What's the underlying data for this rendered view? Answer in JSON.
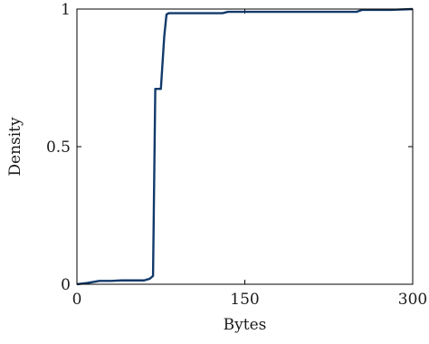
{
  "chart_data": {
    "type": "line",
    "title": "",
    "xlabel": "Bytes",
    "ylabel": "Density",
    "xlim": [
      0,
      300
    ],
    "ylim": [
      0,
      1
    ],
    "xticks": [
      0,
      150,
      300
    ],
    "xtick_labels": [
      "0",
      "150",
      "300"
    ],
    "yticks": [
      0,
      0.5,
      1
    ],
    "ytick_labels": [
      "0",
      "0.5",
      "1"
    ],
    "grid": false,
    "legend": "none",
    "series": [
      {
        "color": "#123a6b",
        "x": [
          0,
          10,
          20,
          30,
          40,
          50,
          60,
          65,
          68,
          70,
          73,
          75,
          78,
          80,
          82,
          84,
          90,
          100,
          120,
          130,
          135,
          150,
          180,
          200,
          250,
          255,
          280,
          300
        ],
        "y": [
          0.0,
          0.005,
          0.012,
          0.012,
          0.014,
          0.014,
          0.014,
          0.02,
          0.03,
          0.71,
          0.71,
          0.71,
          0.9,
          0.98,
          0.985,
          0.985,
          0.985,
          0.985,
          0.985,
          0.985,
          0.99,
          0.99,
          0.99,
          0.99,
          0.99,
          0.997,
          0.997,
          1.0
        ]
      }
    ]
  }
}
